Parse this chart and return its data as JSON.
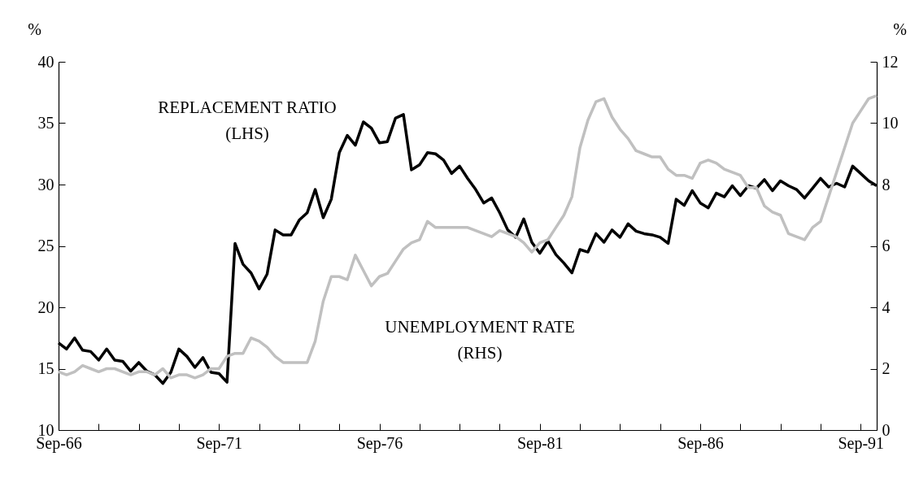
{
  "chart_data": {
    "type": "line",
    "categories": [
      "Sep-66",
      null,
      null,
      null,
      null,
      null,
      null,
      null,
      null,
      null,
      null,
      null,
      null,
      null,
      null,
      null,
      null,
      null,
      null,
      null,
      "Sep-71",
      null,
      null,
      null,
      null,
      null,
      null,
      null,
      null,
      null,
      null,
      null,
      null,
      null,
      null,
      null,
      null,
      null,
      null,
      null,
      "Sep-76",
      null,
      null,
      null,
      null,
      null,
      null,
      null,
      null,
      null,
      null,
      null,
      null,
      null,
      null,
      null,
      null,
      null,
      null,
      null,
      "Sep-81",
      null,
      null,
      null,
      null,
      null,
      null,
      null,
      null,
      null,
      null,
      null,
      null,
      null,
      null,
      null,
      null,
      null,
      null,
      null,
      "Sep-86",
      null,
      null,
      null,
      null,
      null,
      null,
      null,
      null,
      null,
      null,
      null,
      null,
      null,
      null,
      null,
      null,
      null,
      null,
      null,
      "Sep-91",
      null,
      null
    ],
    "series": [
      {
        "name": "REPLACEMENT RATIO (LHS)",
        "color": "#000000",
        "values": [
          17.1,
          16.6,
          17.5,
          16.5,
          16.4,
          15.7,
          16.6,
          15.7,
          15.6,
          14.8,
          15.5,
          14.8,
          14.5,
          13.8,
          14.7,
          16.6,
          16.0,
          15.1,
          15.9,
          14.7,
          14.6,
          13.9,
          25.2,
          23.5,
          22.8,
          21.5,
          22.7,
          26.3,
          25.9,
          25.9,
          27.1,
          27.7,
          29.6,
          27.3,
          28.8,
          32.6,
          34.0,
          33.2,
          35.1,
          34.6,
          33.4,
          33.5,
          35.4,
          35.7,
          31.2,
          31.6,
          32.6,
          32.5,
          32.0,
          30.9,
          31.5,
          30.5,
          29.6,
          28.5,
          28.9,
          27.7,
          26.3,
          25.7,
          27.2,
          25.3,
          24.4,
          25.4,
          24.3,
          23.6,
          22.8,
          24.7,
          24.5,
          26.0,
          25.3,
          26.3,
          25.7,
          26.8,
          26.2,
          26.0,
          25.9,
          25.7,
          25.2,
          28.8,
          28.3,
          29.5,
          28.5,
          28.1,
          29.3,
          29.0,
          29.9,
          29.1,
          29.9,
          29.7,
          30.4,
          29.5,
          30.3,
          29.9,
          29.6,
          28.9,
          29.7,
          30.5,
          29.8,
          30.1,
          29.8,
          31.5,
          30.9,
          30.3,
          29.9
        ]
      },
      {
        "name": "UNEMPLOYMENT RATE (RHS)",
        "color": "#c0c0c0",
        "axis": "y2",
        "values": [
          1.9,
          1.8,
          1.9,
          2.1,
          2.0,
          1.9,
          2.0,
          2.0,
          1.9,
          1.8,
          1.9,
          1.9,
          1.8,
          2.0,
          1.7,
          1.8,
          1.8,
          1.7,
          1.8,
          2.0,
          2.0,
          2.4,
          2.5,
          2.5,
          3.0,
          2.9,
          2.7,
          2.4,
          2.2,
          2.2,
          2.2,
          2.2,
          2.9,
          4.2,
          5.0,
          5.0,
          4.9,
          5.7,
          5.2,
          4.7,
          5.0,
          5.1,
          5.5,
          5.9,
          6.1,
          6.2,
          6.8,
          6.6,
          6.6,
          6.6,
          6.6,
          6.6,
          6.5,
          6.4,
          6.3,
          6.5,
          6.4,
          6.3,
          6.1,
          5.8,
          6.1,
          6.2,
          6.6,
          7.0,
          7.6,
          9.2,
          10.1,
          10.7,
          10.8,
          10.2,
          9.8,
          9.5,
          9.1,
          9.0,
          8.9,
          8.9,
          8.5,
          8.3,
          8.3,
          8.2,
          8.7,
          8.8,
          8.7,
          8.5,
          8.4,
          8.3,
          7.9,
          7.9,
          7.3,
          7.1,
          7.0,
          6.4,
          6.3,
          6.2,
          6.6,
          6.8,
          7.6,
          8.4,
          9.2,
          10.0,
          10.4,
          10.8,
          10.9
        ]
      }
    ],
    "ylabel": "%",
    "y2label": "%",
    "ylim": [
      10,
      40
    ],
    "yticks": [
      10,
      15,
      20,
      25,
      30,
      35,
      40
    ],
    "y2lim": [
      0,
      12
    ],
    "y2ticks": [
      0,
      2,
      4,
      6,
      8,
      10,
      12
    ],
    "grid": false,
    "line_style": "solid",
    "marker": "none"
  }
}
